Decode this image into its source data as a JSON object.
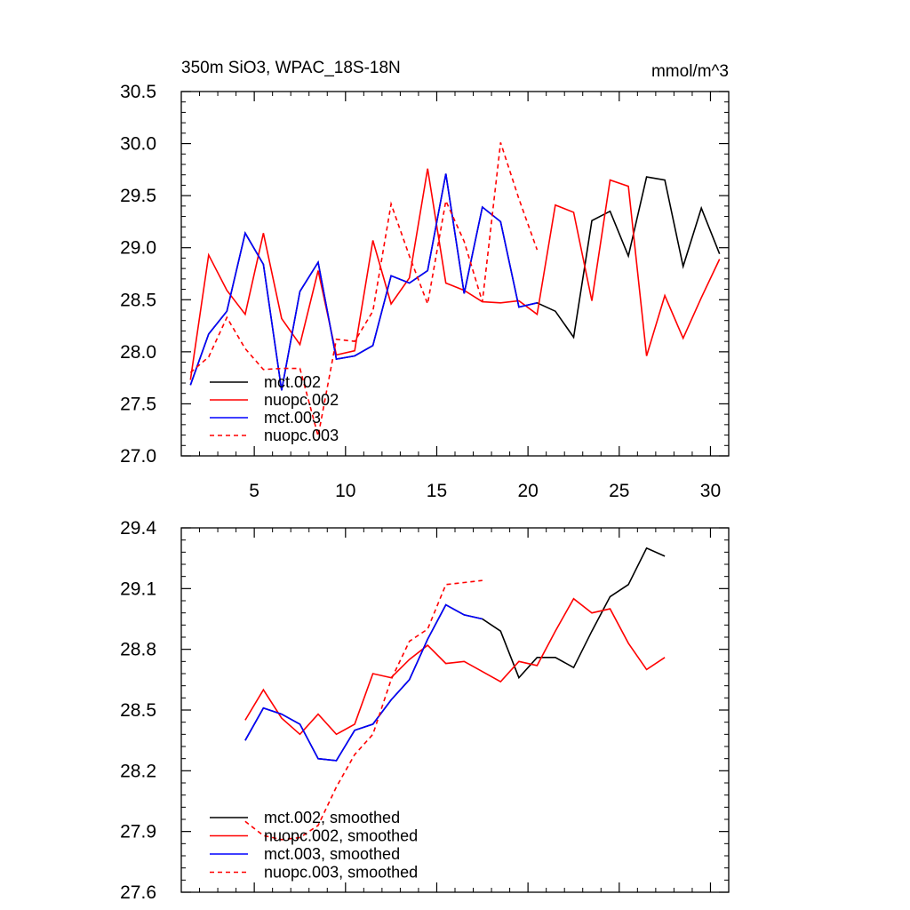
{
  "title": "350m SiO3, WPAC_18S-18N",
  "units": "mmol/m^3",
  "chart_data": [
    {
      "type": "line",
      "title": "350m SiO3, WPAC_18S-18N",
      "units": "mmol/m^3",
      "xlim": [
        1,
        31
      ],
      "ylim": [
        27.0,
        30.5
      ],
      "x_ticks": [
        5,
        10,
        15,
        20,
        25,
        30
      ],
      "y_ticks": [
        27.0,
        27.5,
        28.0,
        28.5,
        29.0,
        29.5,
        30.0,
        30.5
      ],
      "y_tick_labels": [
        "27.0",
        "27.5",
        "28.0",
        "28.5",
        "29.0",
        "29.5",
        "30.0",
        "30.5"
      ],
      "legend_position": "bottom-left",
      "series": [
        {
          "name": "mct.002",
          "color": "#000000",
          "dash": "solid",
          "x": [
            1.5,
            2.5,
            3.5,
            4.5,
            5.5,
            6.5,
            7.5,
            8.5,
            9.5,
            10.5,
            11.5,
            12.5,
            13.5,
            14.5,
            15.5,
            16.5,
            17.5,
            18.5,
            19.5,
            20.5,
            21.5,
            22.5,
            23.5,
            24.5,
            25.5,
            26.5,
            27.5,
            28.5,
            29.5,
            30.5
          ],
          "values": [
            27.68,
            28.17,
            28.39,
            29.14,
            28.84,
            27.63,
            28.58,
            28.86,
            27.93,
            27.96,
            28.06,
            28.73,
            28.66,
            28.78,
            29.71,
            28.56,
            29.39,
            29.25,
            28.43,
            28.47,
            28.39,
            28.14,
            29.26,
            29.35,
            28.92,
            29.68,
            29.65,
            28.82,
            29.38,
            28.94
          ]
        },
        {
          "name": "nuopc.002",
          "color": "#ff0000",
          "dash": "solid",
          "x": [
            1.5,
            2.5,
            3.5,
            4.5,
            5.5,
            6.5,
            7.5,
            8.5,
            9.5,
            10.5,
            11.5,
            12.5,
            13.5,
            14.5,
            15.5,
            16.5,
            17.5,
            18.5,
            19.5,
            20.5,
            21.5,
            22.5,
            23.5,
            24.5,
            25.5,
            26.5,
            27.5,
            28.5,
            29.5,
            30.5
          ],
          "values": [
            27.73,
            28.93,
            28.59,
            28.36,
            29.14,
            28.32,
            28.07,
            28.78,
            27.97,
            28.01,
            29.07,
            28.46,
            28.71,
            29.76,
            28.66,
            28.59,
            28.48,
            28.47,
            28.49,
            28.36,
            29.41,
            29.34,
            28.49,
            29.65,
            29.59,
            27.96,
            28.54,
            28.13,
            28.52,
            28.89
          ]
        },
        {
          "name": "mct.003",
          "color": "#0000ff",
          "dash": "solid",
          "x": [
            1.5,
            2.5,
            3.5,
            4.5,
            5.5,
            6.5,
            7.5,
            8.5,
            9.5,
            10.5,
            11.5,
            12.5,
            13.5,
            14.5,
            15.5,
            16.5,
            17.5,
            18.5,
            19.5,
            20.5
          ],
          "values": [
            27.68,
            28.17,
            28.39,
            29.14,
            28.84,
            27.63,
            28.58,
            28.86,
            27.93,
            27.96,
            28.06,
            28.73,
            28.66,
            28.78,
            29.71,
            28.56,
            29.39,
            29.25,
            28.43,
            28.47
          ]
        },
        {
          "name": "nuopc.003",
          "color": "#ff0000",
          "dash": "dashed",
          "x": [
            1.5,
            2.5,
            3.5,
            4.5,
            5.5,
            6.5,
            7.5,
            8.5,
            9.5,
            10.5,
            11.5,
            12.5,
            13.5,
            14.5,
            15.5,
            16.5,
            17.5,
            18.5,
            19.5,
            20.5
          ],
          "values": [
            27.8,
            27.95,
            28.33,
            28.03,
            27.83,
            27.84,
            27.84,
            27.19,
            28.12,
            28.1,
            28.39,
            29.42,
            28.92,
            28.46,
            29.45,
            29.06,
            28.48,
            30.01,
            29.47,
            28.98
          ]
        }
      ]
    },
    {
      "type": "line",
      "title": "",
      "xlim": [
        1,
        31
      ],
      "ylim": [
        27.6,
        29.4
      ],
      "x_ticks": [
        5,
        10,
        15,
        20,
        25,
        30
      ],
      "y_ticks": [
        27.6,
        27.9,
        28.2,
        28.5,
        28.8,
        29.1,
        29.4
      ],
      "y_tick_labels": [
        "27.6",
        "27.9",
        "28.2",
        "28.5",
        "28.8",
        "29.1",
        "29.4"
      ],
      "legend_position": "bottom-left",
      "series": [
        {
          "name": "mct.002, smoothed",
          "color": "#000000",
          "dash": "solid",
          "x": [
            4.5,
            5.5,
            6.5,
            7.5,
            8.5,
            9.5,
            10.5,
            11.5,
            12.5,
            13.5,
            14.5,
            15.5,
            16.5,
            17.5,
            18.5,
            19.5,
            20.5,
            21.5,
            22.5,
            23.5,
            24.5,
            25.5,
            26.5,
            27.5
          ],
          "values": [
            28.35,
            28.51,
            28.48,
            28.43,
            28.26,
            28.25,
            28.4,
            28.43,
            28.55,
            28.65,
            28.85,
            29.02,
            28.97,
            28.95,
            28.89,
            28.66,
            28.76,
            28.76,
            28.71,
            28.89,
            29.06,
            29.12,
            29.3,
            29.26
          ]
        },
        {
          "name": "nuopc.002, smoothed",
          "color": "#ff0000",
          "dash": "solid",
          "x": [
            4.5,
            5.5,
            6.5,
            7.5,
            8.5,
            9.5,
            10.5,
            11.5,
            12.5,
            13.5,
            14.5,
            15.5,
            16.5,
            17.5,
            18.5,
            19.5,
            20.5,
            21.5,
            22.5,
            23.5,
            24.5,
            25.5,
            26.5,
            27.5
          ],
          "values": [
            28.45,
            28.6,
            28.46,
            28.38,
            28.48,
            28.38,
            28.43,
            28.68,
            28.66,
            28.75,
            28.82,
            28.73,
            28.74,
            28.69,
            28.64,
            28.74,
            28.72,
            28.89,
            29.05,
            28.98,
            29.0,
            28.83,
            28.7,
            28.76
          ]
        },
        {
          "name": "mct.003, smoothed",
          "color": "#0000ff",
          "dash": "solid",
          "x": [
            4.5,
            5.5,
            6.5,
            7.5,
            8.5,
            9.5,
            10.5,
            11.5,
            12.5,
            13.5,
            14.5,
            15.5,
            16.5,
            17.5
          ],
          "values": [
            28.35,
            28.51,
            28.48,
            28.43,
            28.26,
            28.25,
            28.4,
            28.43,
            28.55,
            28.65,
            28.85,
            29.02,
            28.97,
            28.95
          ]
        },
        {
          "name": "nuopc.003, smoothed",
          "color": "#ff0000",
          "dash": "dashed",
          "x": [
            4.5,
            5.5,
            6.5,
            7.5,
            8.5,
            9.5,
            10.5,
            11.5,
            12.5,
            13.5,
            14.5,
            15.5,
            16.5,
            17.5
          ],
          "values": [
            27.95,
            27.88,
            27.86,
            27.87,
            27.93,
            28.12,
            28.28,
            28.38,
            28.65,
            28.84,
            28.9,
            29.12,
            29.13,
            29.14
          ]
        }
      ]
    }
  ]
}
